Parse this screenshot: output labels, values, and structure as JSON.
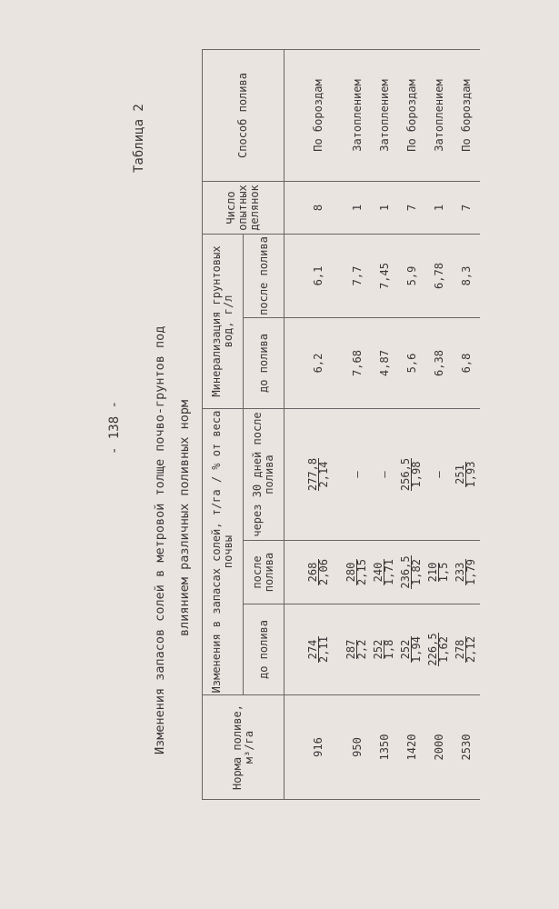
{
  "page_number": "- 138 -",
  "table_label": "Таблица 2",
  "title_line1": "Изменения запасов солей в метровой толще почво-грунтов под",
  "title_line2": "влиянием различных поливных норм",
  "headers": {
    "norm": "Норма поливе, м³/га",
    "salt_change": "Изменения в запасах солей, т/га / % от веса почвы",
    "salt_before": "до полива",
    "salt_after": "после полива",
    "salt_30days": "через 30 дней после полива",
    "mineralization": "Минерализация грунтовых вод, г/л",
    "min_before": "до полива",
    "min_after": "после полива",
    "plots": "Число опытных делянок",
    "method": "Способ полива"
  },
  "rows": [
    {
      "norm": "916",
      "b_n": "274",
      "b_d": "2,11",
      "a_n": "268",
      "a_d": "2,06",
      "d30_n": "277,8",
      "d30_d": "2,14",
      "min_b": "6,2",
      "min_a": "6,1",
      "plots": "8",
      "method": "По бороздам"
    },
    {
      "norm": "950",
      "b_n": "287",
      "b_d": "2,2",
      "a_n": "280",
      "a_d": "2,15",
      "d30_n": "–",
      "d30_d": "",
      "min_b": "7,68",
      "min_a": "7,7",
      "plots": "1",
      "method": "Затоплением"
    },
    {
      "norm": "1350",
      "b_n": "252",
      "b_d": "1,8",
      "a_n": "240",
      "a_d": "1,71",
      "d30_n": "–",
      "d30_d": "",
      "min_b": "4,87",
      "min_a": "7,45",
      "plots": "1",
      "method": "Затоплением"
    },
    {
      "norm": "1420",
      "b_n": "252",
      "b_d": "1,94",
      "a_n": "236,5",
      "a_d": "1,82",
      "d30_n": "256,5",
      "d30_d": "1,98",
      "min_b": "5,6",
      "min_a": "5,9",
      "plots": "7",
      "method": "По бороздам"
    },
    {
      "norm": "2000",
      "b_n": "226,5",
      "b_d": "1,62",
      "a_n": "210",
      "a_d": "1,5",
      "d30_n": "–",
      "d30_d": "",
      "min_b": "6,38",
      "min_a": "6,78",
      "plots": "1",
      "method": "Затоплением"
    },
    {
      "norm": "2530",
      "b_n": "278",
      "b_d": "2,12",
      "a_n": "233",
      "a_d": "1,79",
      "d30_n": "251",
      "d30_d": "1,93",
      "min_b": "6,8",
      "min_a": "8,3",
      "plots": "7",
      "method": "По бороздам"
    }
  ]
}
